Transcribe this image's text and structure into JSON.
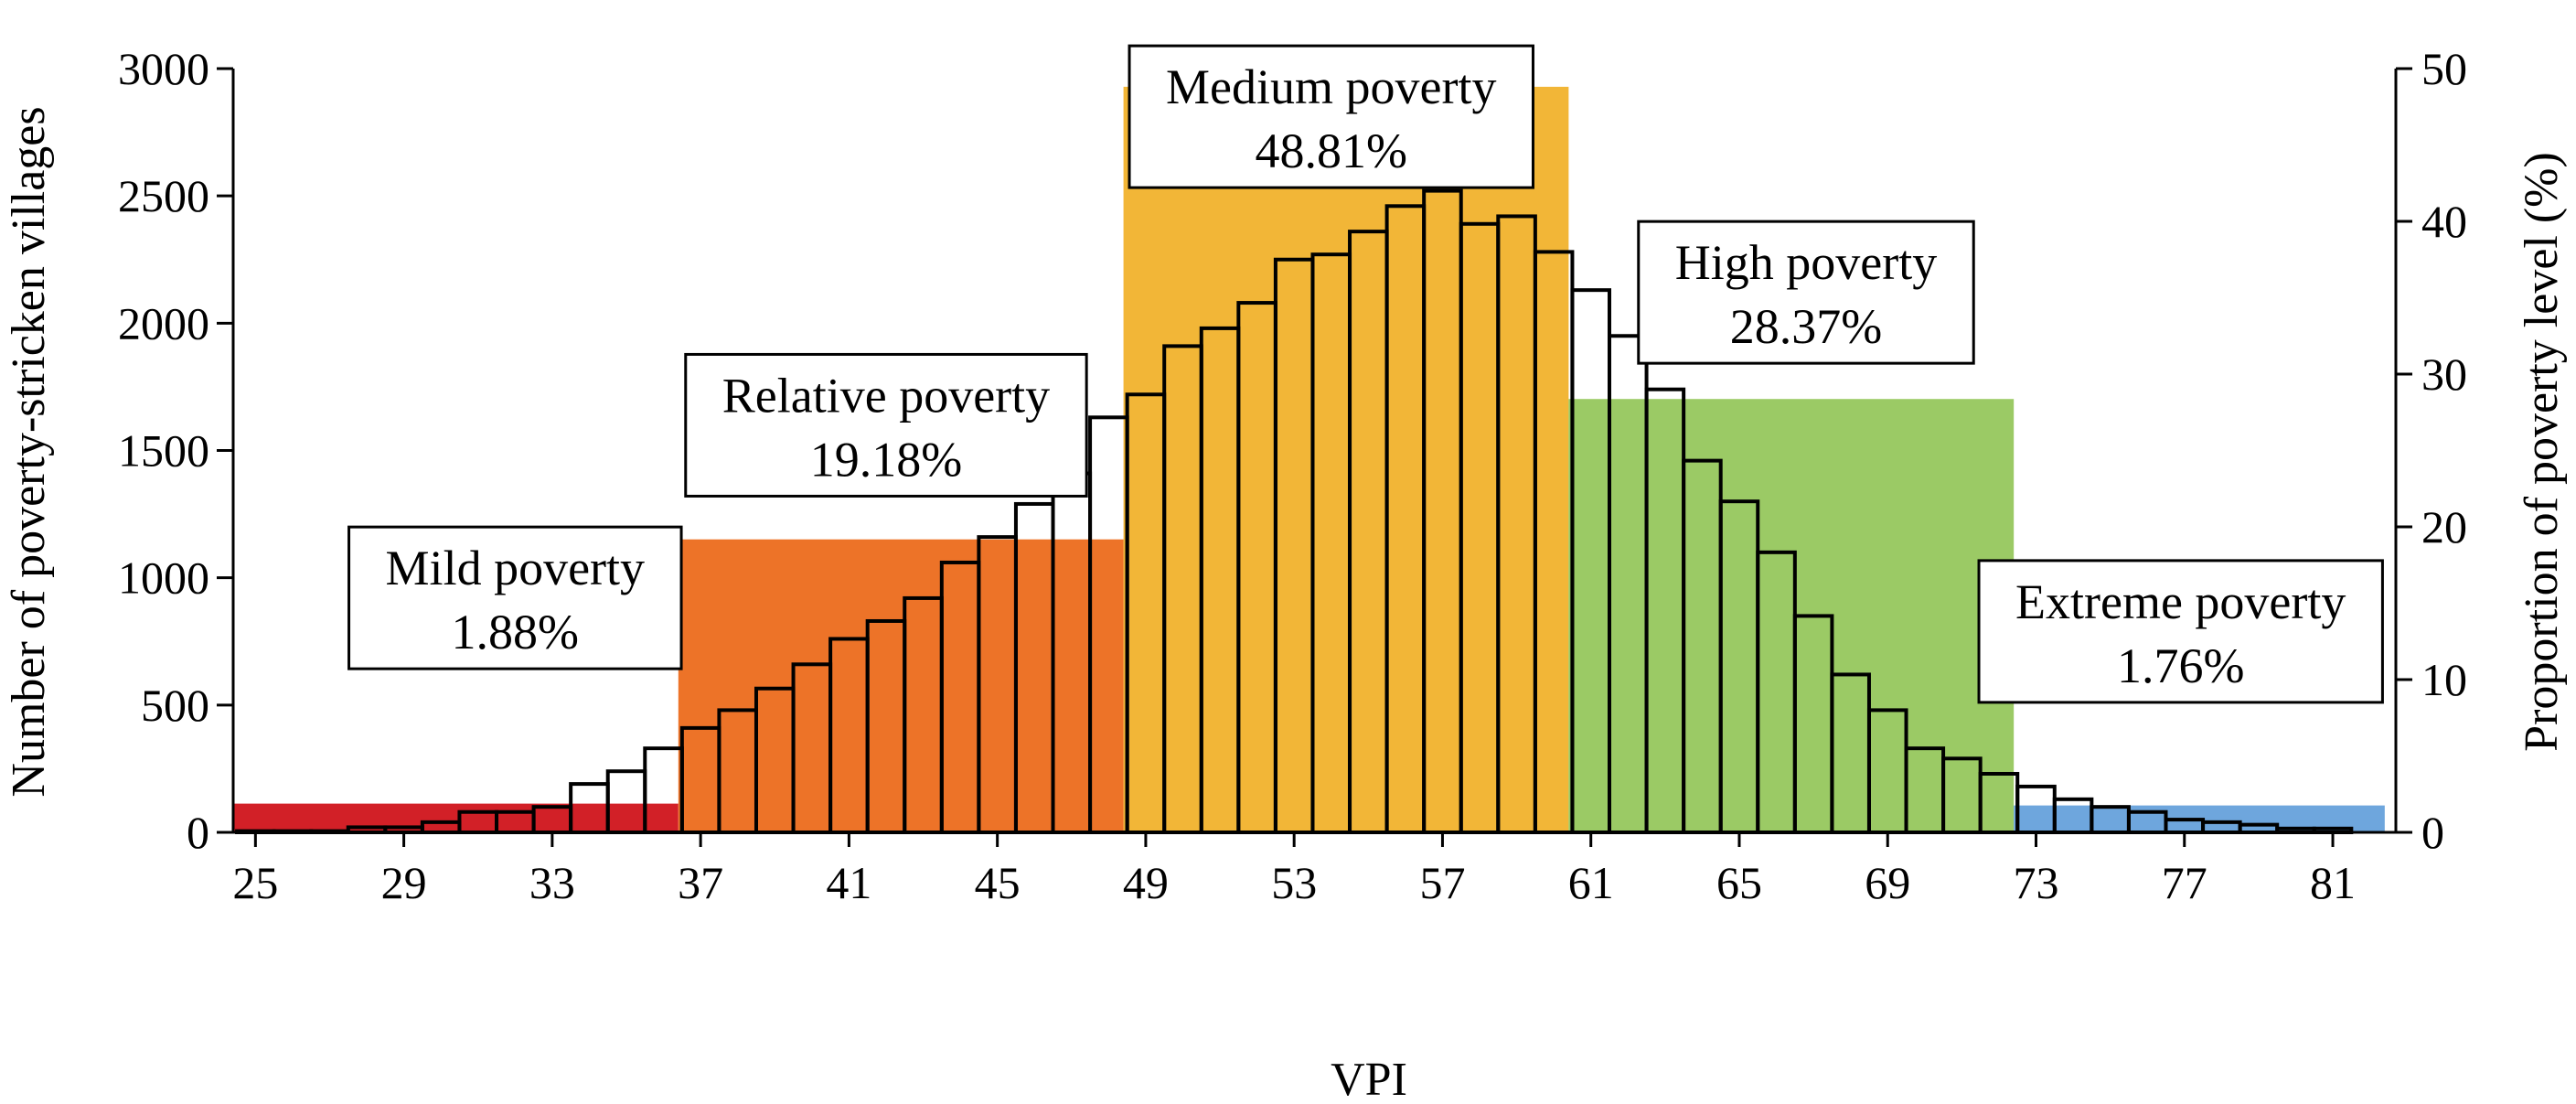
{
  "chart_data": {
    "type": "bar",
    "title": "",
    "xlabel": "VPI",
    "ylabel": "Number of poverty-stricken villages",
    "y2label": "Proportion of poverty level (%)",
    "xlim": [
      24.4,
      82.7
    ],
    "ylim": [
      0,
      3000
    ],
    "y2lim": [
      0,
      50
    ],
    "x_ticks": [
      25,
      29,
      33,
      37,
      41,
      45,
      49,
      53,
      57,
      61,
      65,
      69,
      73,
      77,
      81
    ],
    "y_ticks": [
      0,
      500,
      1000,
      1500,
      2000,
      2500,
      3000
    ],
    "y2_ticks": [
      0,
      10,
      20,
      30,
      40,
      50
    ],
    "grid": false,
    "histogram": {
      "bin_width": 1,
      "bins": [
        {
          "x": 25,
          "value": 5
        },
        {
          "x": 26,
          "value": 5
        },
        {
          "x": 27,
          "value": 5
        },
        {
          "x": 28,
          "value": 20
        },
        {
          "x": 29,
          "value": 20
        },
        {
          "x": 30,
          "value": 40
        },
        {
          "x": 31,
          "value": 80
        },
        {
          "x": 32,
          "value": 80
        },
        {
          "x": 33,
          "value": 100
        },
        {
          "x": 34,
          "value": 190
        },
        {
          "x": 35,
          "value": 240
        },
        {
          "x": 36,
          "value": 330
        },
        {
          "x": 37,
          "value": 410
        },
        {
          "x": 38,
          "value": 480
        },
        {
          "x": 39,
          "value": 565
        },
        {
          "x": 40,
          "value": 660
        },
        {
          "x": 41,
          "value": 760
        },
        {
          "x": 42,
          "value": 830
        },
        {
          "x": 43,
          "value": 920
        },
        {
          "x": 44,
          "value": 1060
        },
        {
          "x": 45,
          "value": 1160
        },
        {
          "x": 46,
          "value": 1290
        },
        {
          "x": 47,
          "value": 1410
        },
        {
          "x": 48,
          "value": 1630
        },
        {
          "x": 49,
          "value": 1720
        },
        {
          "x": 50,
          "value": 1910
        },
        {
          "x": 51,
          "value": 1980
        },
        {
          "x": 52,
          "value": 2080
        },
        {
          "x": 53,
          "value": 2250
        },
        {
          "x": 54,
          "value": 2270
        },
        {
          "x": 55,
          "value": 2360
        },
        {
          "x": 56,
          "value": 2460
        },
        {
          "x": 57,
          "value": 2520
        },
        {
          "x": 58,
          "value": 2390
        },
        {
          "x": 59,
          "value": 2420
        },
        {
          "x": 60,
          "value": 2280
        },
        {
          "x": 61,
          "value": 2130
        },
        {
          "x": 62,
          "value": 1950
        },
        {
          "x": 63,
          "value": 1740
        },
        {
          "x": 64,
          "value": 1460
        },
        {
          "x": 65,
          "value": 1300
        },
        {
          "x": 66,
          "value": 1100
        },
        {
          "x": 67,
          "value": 850
        },
        {
          "x": 68,
          "value": 620
        },
        {
          "x": 69,
          "value": 480
        },
        {
          "x": 70,
          "value": 330
        },
        {
          "x": 71,
          "value": 290
        },
        {
          "x": 72,
          "value": 230
        },
        {
          "x": 73,
          "value": 180
        },
        {
          "x": 74,
          "value": 130
        },
        {
          "x": 75,
          "value": 100
        },
        {
          "x": 76,
          "value": 80
        },
        {
          "x": 77,
          "value": 50
        },
        {
          "x": 78,
          "value": 40
        },
        {
          "x": 79,
          "value": 30
        },
        {
          "x": 80,
          "value": 15
        },
        {
          "x": 81,
          "value": 15
        }
      ]
    },
    "categories": [
      {
        "name": "Mild poverty",
        "percent_label": "1.88%",
        "proportion": 1.88,
        "x_start": 24.4,
        "x_end": 36.4,
        "color": "#D22027",
        "label_pos": [
          32.0,
          15.5
        ]
      },
      {
        "name": "Relative poverty",
        "percent_label": "19.18%",
        "proportion": 19.18,
        "x_start": 36.4,
        "x_end": 48.4,
        "color": "#ED7328",
        "label_pos": [
          42.0,
          26.8
        ]
      },
      {
        "name": "Medium poverty",
        "percent_label": "48.81%",
        "proportion": 48.81,
        "x_start": 48.4,
        "x_end": 60.4,
        "color": "#F2B637",
        "label_pos": [
          54.0,
          47.0
        ]
      },
      {
        "name": "High poverty",
        "percent_label": "28.37%",
        "proportion": 28.37,
        "x_start": 60.4,
        "x_end": 72.4,
        "color": "#9BCA65",
        "label_pos": [
          66.8,
          35.5
        ]
      },
      {
        "name": "Extreme poverty",
        "percent_label": "1.76%",
        "proportion": 1.76,
        "x_start": 72.4,
        "x_end": 82.4,
        "color": "#6EA6DD",
        "label_pos": [
          76.9,
          13.3
        ]
      }
    ]
  }
}
